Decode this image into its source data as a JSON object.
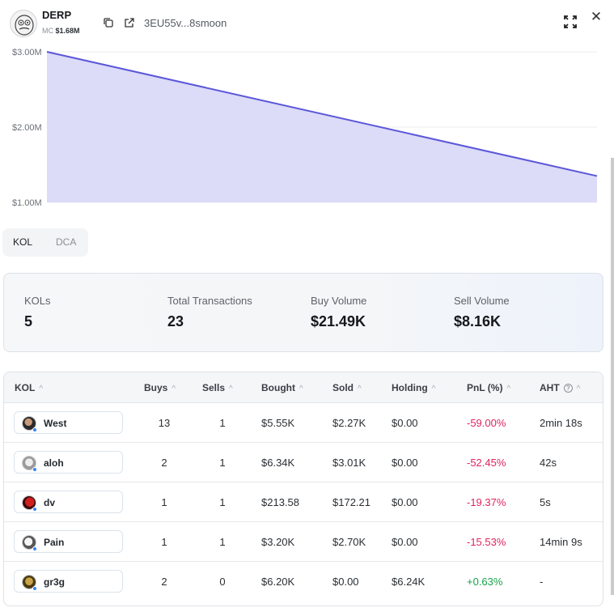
{
  "header": {
    "token_name": "DERP",
    "mc_label": "MC",
    "mc_value": "$1.68M",
    "address": "3EU55v...8smoon",
    "icons": [
      "copy-icon",
      "external-link-icon",
      "expand-icon",
      "close-icon"
    ],
    "close_glyph": "✕"
  },
  "chart_data": {
    "type": "area",
    "x": [
      0,
      1
    ],
    "values": [
      3.0,
      1.35
    ],
    "ytick_labels": [
      "$3.00M",
      "$2.00M",
      "$1.00M"
    ],
    "ylim": [
      1.0,
      3.0
    ],
    "grid": true,
    "colors": {
      "line": "#5b57d9",
      "fill": "#dcdbf8"
    }
  },
  "tabs": [
    {
      "label": "KOL",
      "active": true
    },
    {
      "label": "DCA",
      "active": false
    }
  ],
  "stats": [
    {
      "label": "KOLs",
      "value": "5"
    },
    {
      "label": "Total Transactions",
      "value": "23"
    },
    {
      "label": "Buy Volume",
      "value": "$21.49K"
    },
    {
      "label": "Sell Volume",
      "value": "$8.16K"
    }
  ],
  "table": {
    "headers": [
      "KOL",
      "Buys",
      "Sells",
      "Bought",
      "Sold",
      "Holding",
      "PnL (%)",
      "AHT"
    ],
    "sort_glyph": "^",
    "help_glyph": "?",
    "rows": [
      {
        "kol": "West",
        "buys": "13",
        "sells": "1",
        "bought": "$5.55K",
        "sold": "$2.27K",
        "holding": "$0.00",
        "pnl": "-59.00%",
        "aht": "2min 18s"
      },
      {
        "kol": "aloh",
        "buys": "2",
        "sells": "1",
        "bought": "$6.34K",
        "sold": "$3.01K",
        "holding": "$0.00",
        "pnl": "-52.45%",
        "aht": "42s"
      },
      {
        "kol": "dv",
        "buys": "1",
        "sells": "1",
        "bought": "$213.58",
        "sold": "$172.21",
        "holding": "$0.00",
        "pnl": "-19.37%",
        "aht": "5s"
      },
      {
        "kol": "Pain",
        "buys": "1",
        "sells": "1",
        "bought": "$3.20K",
        "sold": "$2.70K",
        "holding": "$0.00",
        "pnl": "-15.53%",
        "aht": "14min 9s"
      },
      {
        "kol": "gr3g",
        "buys": "2",
        "sells": "0",
        "bought": "$6.20K",
        "sold": "$0.00",
        "holding": "$6.24K",
        "pnl": "+0.63%",
        "aht": "-"
      }
    ],
    "colors": {
      "negative": "#e0245e",
      "positive": "#16a34a"
    }
  }
}
